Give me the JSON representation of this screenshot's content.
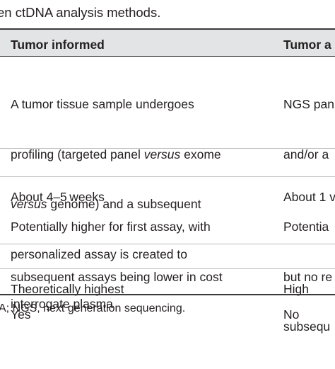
{
  "caption": "en ctDNA analysis methods.",
  "table": {
    "headers": [
      "Tumor informed",
      "Tumor a"
    ],
    "rows": [
      {
        "col1_lines": [
          "A tumor tissue sample undergoes",
          "profiling (targeted panel ",
          "versus",
          " exome",
          "versus",
          " genome) and a subsequent",
          "personalized assay is created to",
          "interrogate plasma"
        ],
        "col2_lines": [
          "NGS pan",
          "and/or a"
        ]
      },
      {
        "col1_lines": [
          "About 4–5 weeks"
        ],
        "col2_lines": [
          "About 1 v"
        ]
      },
      {
        "col1_lines": [
          "Potentially higher for first assay, with",
          "subsequent assays being lower in cost"
        ],
        "col2_lines": [
          "Potentia",
          "but no re",
          "subsequ"
        ]
      },
      {
        "col1_lines": [
          "Theoretically highest"
        ],
        "col2_lines": [
          "High"
        ]
      },
      {
        "col1_lines": [
          "Yes"
        ],
        "col2_lines": [
          "No"
        ]
      }
    ]
  },
  "footnote": "A; NGS, next generation sequencing."
}
